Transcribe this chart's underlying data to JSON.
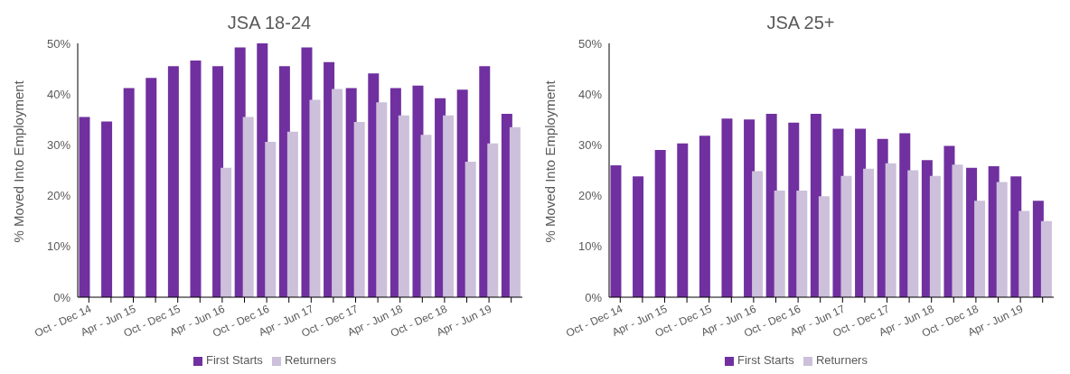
{
  "chart_data": [
    {
      "type": "bar",
      "title": "JSA 18-24",
      "ylabel": "% Moved Into Employment",
      "categories": [
        "Oct - Dec 14",
        null,
        "Apr - Jun 15",
        null,
        "Oct - Dec 15",
        null,
        "Apr - Jun 16",
        null,
        "Oct - Dec 16",
        null,
        "Apr - Jun 17",
        null,
        "Oct - Dec 17",
        null,
        "Apr - Jun 18",
        null,
        "Oct - Dec 18",
        null,
        "Apr - Jun 19",
        null
      ],
      "series": [
        {
          "name": "First Starts",
          "color": "#7030a0",
          "values": [
            35.5,
            34.6,
            41.2,
            43.2,
            45.5,
            46.6,
            45.5,
            49.2,
            50,
            45.5,
            49.2,
            46.3,
            41.2,
            44.1,
            41.2,
            41.7,
            39.2,
            40.9,
            45.5,
            36.1
          ]
        },
        {
          "name": "Returners",
          "color": "#ccc0da",
          "values": [
            null,
            null,
            null,
            null,
            null,
            null,
            25.5,
            35.5,
            30.6,
            32.6,
            38.9,
            41.0,
            34.5,
            38.4,
            35.8,
            32.0,
            35.8,
            26.7,
            30.3,
            33.5
          ]
        }
      ],
      "ylim": [
        0,
        50
      ],
      "yticks": [
        {
          "value": 0,
          "label": "0%"
        },
        {
          "value": 10,
          "label": "10%"
        },
        {
          "value": 20,
          "label": "20%"
        },
        {
          "value": 30,
          "label": "30%"
        },
        {
          "value": 40,
          "label": "40%"
        },
        {
          "value": 50,
          "label": "50%"
        }
      ],
      "grid": false,
      "legend": "bottom"
    },
    {
      "type": "bar",
      "title": "JSA 25+",
      "ylabel": "% Moved Into Employment",
      "categories": [
        "Oct - Dec 14",
        null,
        "Apr - Jun 15",
        null,
        "Oct - Dec 15",
        null,
        "Apr - Jun 16",
        null,
        "Oct - Dec 16",
        null,
        "Apr - Jun 17",
        null,
        "Oct - Dec 17",
        null,
        "Apr - Jun 18",
        null,
        "Oct - Dec 18",
        null,
        "Apr - Jun 19",
        null
      ],
      "series": [
        {
          "name": "First Starts",
          "color": "#7030a0",
          "values": [
            26,
            23.8,
            29,
            30.3,
            31.8,
            35.2,
            35,
            36.1,
            34.4,
            36.1,
            33.2,
            33.2,
            31.2,
            32.3,
            27,
            29.8,
            25.5,
            25.8,
            23.8,
            19
          ]
        },
        {
          "name": "Returners",
          "color": "#ccc0da",
          "values": [
            null,
            null,
            null,
            null,
            null,
            null,
            24.8,
            21,
            21,
            19.9,
            23.9,
            25.3,
            26.4,
            25,
            23.9,
            26.1,
            19,
            22.7,
            17,
            15
          ]
        }
      ],
      "ylim": [
        0,
        50
      ],
      "yticks": [
        {
          "value": 0,
          "label": "0%"
        },
        {
          "value": 10,
          "label": "10%"
        },
        {
          "value": 20,
          "label": "20%"
        },
        {
          "value": 30,
          "label": "30%"
        },
        {
          "value": 40,
          "label": "40%"
        },
        {
          "value": 50,
          "label": "50%"
        }
      ],
      "grid": false,
      "legend": "bottom"
    }
  ]
}
